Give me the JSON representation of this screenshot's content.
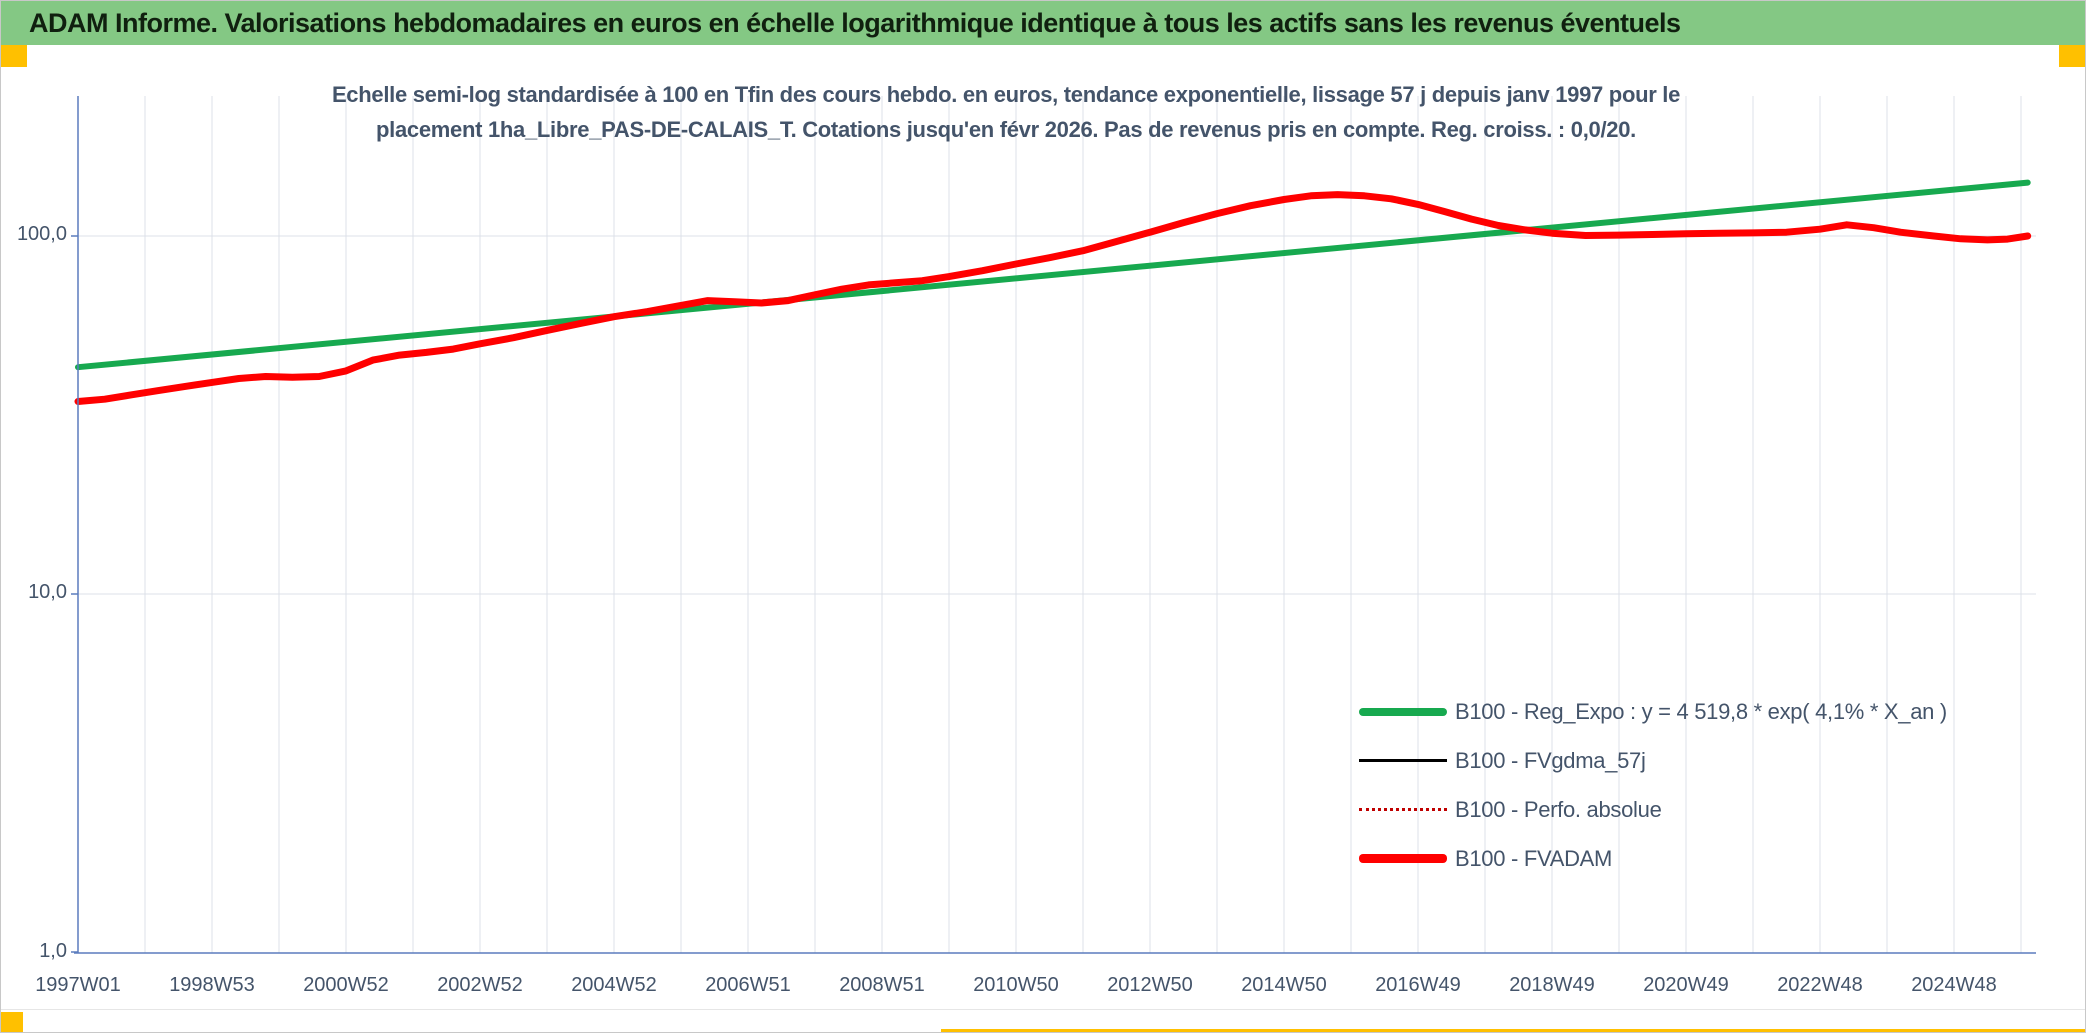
{
  "banner": {
    "title": "ADAM Informe. Valorisations hebdomadaires en euros en échelle logarithmique identique à tous les actifs sans les revenus éventuels"
  },
  "subtitle": {
    "line1": "Echelle semi-log standardisée à 100 en Tfin des cours hebdo. en euros, tendance exponentielle, lissage 57 j depuis janv 1997 pour le",
    "line2": "placement 1ha_Libre_PAS-DE-CALAIS_T. Cotations jusqu'en févr 2026. Pas de revenus pris en compte. Reg. croiss. : 0,0/20."
  },
  "colors": {
    "banner_bg": "#84c884",
    "banner_text": "#10200f",
    "accent_yellow": "#ffc000",
    "axis_text": "#44546a",
    "grid_line": "#dce0e8",
    "axis_line": "#5b7cbe",
    "reg_expo_green": "#17a94f",
    "fvadam_red": "#ff0000",
    "perfo_red": "#c00000",
    "fvgdma_black": "#000000"
  },
  "chart_data": {
    "type": "line",
    "x_scale": "time (weekly quotes, labels every 104 weeks)",
    "y_scale": "log10",
    "y_ticks": [
      {
        "label": "100,0",
        "value": 100
      },
      {
        "label": "10,0",
        "value": 10
      },
      {
        "label": "1,0",
        "value": 1
      }
    ],
    "x_tick_labels": [
      "1997W01",
      "1998W53",
      "2000W52",
      "2002W52",
      "2004W52",
      "2006W51",
      "2008W51",
      "2010W50",
      "2012W50",
      "2014W50",
      "2016W49",
      "2018W49",
      "2020W49",
      "2022W48",
      "2024W48"
    ],
    "x_tick_years": [
      1997,
      1999,
      2001,
      2003,
      2005,
      2007,
      2009,
      2011,
      2013,
      2015,
      2017,
      2019,
      2021,
      2023,
      2025
    ],
    "x_range_years": [
      1997.0,
      2026.1
    ],
    "ylim": [
      1,
      200
    ],
    "grid": {
      "vertical": "yearly",
      "horizontal": "decades (100, 10)"
    },
    "legend_position": "inside lower right",
    "series": [
      {
        "name": "B100 - Reg_Expo",
        "formula": "y = 4 519,8 * exp( 4,1% * X_an )",
        "color": "#17a94f",
        "width": 6,
        "style": "solid",
        "points": [
          [
            1997.0,
            43.0
          ],
          [
            2026.1,
            141.0
          ]
        ]
      },
      {
        "name": "B100 - FVgdma_57j",
        "color": "#000000",
        "width": 2.5,
        "style": "solid",
        "points": [],
        "note": "not separately visible — coincides with B100 - FVADAM"
      },
      {
        "name": "B100 - Perfo. absolue",
        "color": "#c00000",
        "width": 2,
        "style": "dotted",
        "points": [],
        "note": "not separately visible — coincides with B100 - FVADAM"
      },
      {
        "name": "B100 - FVADAM",
        "color": "#ff0000",
        "width": 7,
        "style": "solid",
        "points": [
          [
            1997.0,
            34.5
          ],
          [
            1997.4,
            35.0
          ],
          [
            1997.8,
            36.0
          ],
          [
            1998.2,
            37.0
          ],
          [
            1998.6,
            38.0
          ],
          [
            1999.0,
            39.0
          ],
          [
            1999.4,
            40.0
          ],
          [
            1999.8,
            40.5
          ],
          [
            2000.2,
            40.3
          ],
          [
            2000.6,
            40.5
          ],
          [
            2001.0,
            42.0
          ],
          [
            2001.4,
            45.0
          ],
          [
            2001.8,
            46.5
          ],
          [
            2002.2,
            47.3
          ],
          [
            2002.6,
            48.3
          ],
          [
            2003.0,
            50.0
          ],
          [
            2003.5,
            52.0
          ],
          [
            2004.0,
            54.5
          ],
          [
            2004.5,
            57.0
          ],
          [
            2005.0,
            59.5
          ],
          [
            2005.5,
            61.5
          ],
          [
            2006.0,
            64.0
          ],
          [
            2006.4,
            66.0
          ],
          [
            2006.8,
            65.5
          ],
          [
            2007.2,
            65.0
          ],
          [
            2007.6,
            66.0
          ],
          [
            2008.0,
            68.5
          ],
          [
            2008.4,
            71.0
          ],
          [
            2008.8,
            73.0
          ],
          [
            2009.2,
            74.0
          ],
          [
            2009.6,
            75.0
          ],
          [
            2010.0,
            77.0
          ],
          [
            2010.5,
            80.0
          ],
          [
            2011.0,
            83.5
          ],
          [
            2011.5,
            87.0
          ],
          [
            2012.0,
            91.0
          ],
          [
            2012.5,
            96.5
          ],
          [
            2013.0,
            102.5
          ],
          [
            2013.5,
            109.0
          ],
          [
            2014.0,
            115.5
          ],
          [
            2014.5,
            121.5
          ],
          [
            2015.0,
            126.5
          ],
          [
            2015.4,
            129.5
          ],
          [
            2015.8,
            130.5
          ],
          [
            2016.2,
            129.5
          ],
          [
            2016.6,
            127.0
          ],
          [
            2017.0,
            122.5
          ],
          [
            2017.4,
            117.0
          ],
          [
            2017.8,
            111.5
          ],
          [
            2018.2,
            107.0
          ],
          [
            2018.6,
            104.0
          ],
          [
            2019.0,
            101.8
          ],
          [
            2019.5,
            100.3
          ],
          [
            2020.0,
            100.6
          ],
          [
            2020.5,
            101.0
          ],
          [
            2021.0,
            101.5
          ],
          [
            2021.5,
            101.8
          ],
          [
            2022.0,
            102.0
          ],
          [
            2022.5,
            102.5
          ],
          [
            2023.0,
            104.5
          ],
          [
            2023.4,
            107.5
          ],
          [
            2023.8,
            105.5
          ],
          [
            2024.2,
            102.5
          ],
          [
            2024.7,
            100.0
          ],
          [
            2025.1,
            98.2
          ],
          [
            2025.5,
            97.5
          ],
          [
            2025.8,
            98.0
          ],
          [
            2026.1,
            100.0
          ]
        ]
      }
    ],
    "legend": [
      {
        "label": "B100 - Reg_Expo : y = 4 519,8 * exp( 4,1% *  X_an )",
        "swatch": "green-thick"
      },
      {
        "label": "B100 - FVgdma_57j",
        "swatch": "black-thin"
      },
      {
        "label": "B100 - Perfo. absolue",
        "swatch": "red-dotted"
      },
      {
        "label": "B100 - FVADAM",
        "swatch": "red-thick"
      }
    ]
  }
}
